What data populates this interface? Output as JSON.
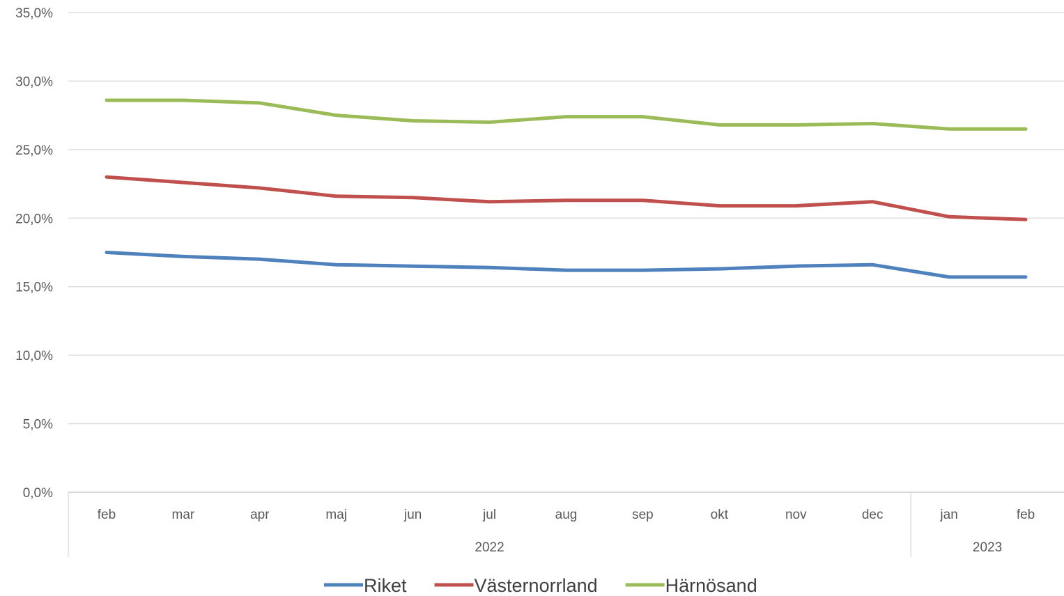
{
  "chart_data": {
    "type": "line",
    "title": "",
    "xlabel": "",
    "ylabel": "",
    "ylim": [
      0,
      35
    ],
    "y_ticks": [
      "0,0%",
      "5,0%",
      "10,0%",
      "15,0%",
      "20,0%",
      "25,0%",
      "30,0%",
      "35,0%"
    ],
    "grid": true,
    "legend_position": "bottom",
    "categories": [
      "feb",
      "mar",
      "apr",
      "maj",
      "jun",
      "jul",
      "aug",
      "sep",
      "okt",
      "nov",
      "dec",
      "jan",
      "feb"
    ],
    "year_groups": [
      {
        "label": "2022",
        "count": 11
      },
      {
        "label": "2023",
        "count": 2
      }
    ],
    "series": [
      {
        "name": "Riket",
        "color": "#4f81bd",
        "values": [
          17.5,
          17.2,
          17.0,
          16.6,
          16.5,
          16.4,
          16.2,
          16.2,
          16.3,
          16.5,
          16.6,
          15.7,
          15.7
        ]
      },
      {
        "name": "Västernorrland",
        "color": "#c0504d",
        "values": [
          23.0,
          22.6,
          22.2,
          21.6,
          21.5,
          21.2,
          21.3,
          21.3,
          20.9,
          20.9,
          21.2,
          20.1,
          19.9
        ]
      },
      {
        "name": "Härnösand",
        "color": "#9bbb59",
        "values": [
          28.6,
          28.6,
          28.4,
          27.5,
          27.1,
          27.0,
          27.4,
          27.4,
          26.8,
          26.8,
          26.9,
          26.5,
          26.5
        ]
      }
    ]
  }
}
